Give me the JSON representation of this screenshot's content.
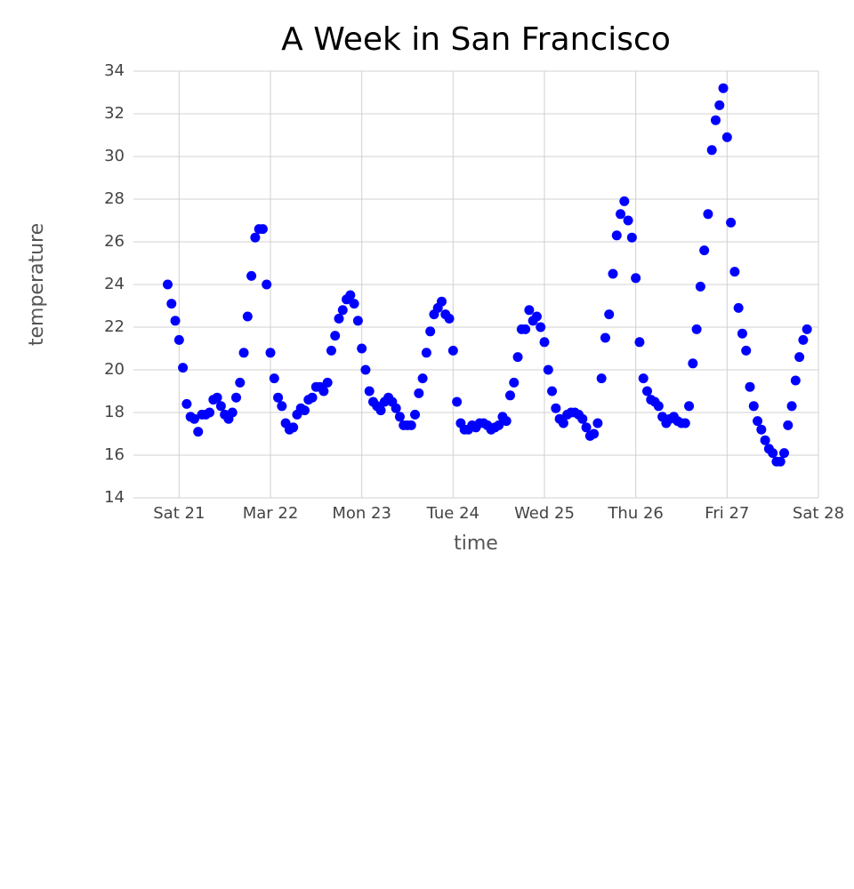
{
  "chart_data": {
    "type": "scatter",
    "title": "A Week in San Francisco",
    "x_label": "time",
    "y_label": "temperature",
    "color": "#0000ff",
    "grid": true,
    "xlim": [
      -12,
      168
    ],
    "xticks": [
      {
        "value": 0,
        "label": "Sat 21"
      },
      {
        "value": 24,
        "label": "Mar 22"
      },
      {
        "value": 48,
        "label": "Mon 23"
      },
      {
        "value": 72,
        "label": "Tue 24"
      },
      {
        "value": 96,
        "label": "Wed 25"
      },
      {
        "value": 120,
        "label": "Thu 26"
      },
      {
        "value": 144,
        "label": "Fri 27"
      },
      {
        "value": 168,
        "label": "Sat 28"
      }
    ],
    "ylim": [
      14,
      34
    ],
    "yticks": [
      14,
      16,
      18,
      20,
      22,
      24,
      26,
      28,
      30,
      32,
      34
    ],
    "x": [
      -3,
      -2,
      -1,
      0,
      1,
      2,
      3,
      4,
      5,
      6,
      7,
      8,
      9,
      10,
      11,
      12,
      13,
      14,
      15,
      16,
      17,
      18,
      19,
      20,
      21,
      22,
      23,
      24,
      25,
      26,
      27,
      28,
      29,
      30,
      31,
      32,
      33,
      34,
      35,
      36,
      37,
      38,
      39,
      40,
      41,
      42,
      43,
      44,
      45,
      46,
      47,
      48,
      49,
      50,
      51,
      52,
      53,
      54,
      55,
      56,
      57,
      58,
      59,
      60,
      61,
      62,
      63,
      64,
      65,
      66,
      67,
      68,
      69,
      70,
      71,
      72,
      73,
      74,
      75,
      76,
      77,
      78,
      79,
      80,
      81,
      82,
      83,
      84,
      85,
      86,
      87,
      88,
      89,
      90,
      91,
      92,
      93,
      94,
      95,
      96,
      97,
      98,
      99,
      100,
      101,
      102,
      103,
      104,
      105,
      106,
      107,
      108,
      109,
      110,
      111,
      112,
      113,
      114,
      115,
      116,
      117,
      118,
      119,
      120,
      121,
      122,
      123,
      124,
      125,
      126,
      127,
      128,
      129,
      130,
      131,
      132,
      133,
      134,
      135,
      136,
      137,
      138,
      139,
      140,
      141,
      142,
      143,
      144,
      145,
      146,
      147,
      148,
      149,
      150,
      151,
      152,
      153,
      154,
      155,
      156,
      157,
      158,
      159,
      160,
      161,
      162,
      163,
      164,
      165
    ],
    "values": [
      24.0,
      23.1,
      22.3,
      21.4,
      20.1,
      18.4,
      17.8,
      17.7,
      17.1,
      17.9,
      17.9,
      18.0,
      18.6,
      18.7,
      18.3,
      17.9,
      17.7,
      18.0,
      18.7,
      19.4,
      20.8,
      22.5,
      24.4,
      26.2,
      26.6,
      26.6,
      24.0,
      20.8,
      19.6,
      18.7,
      18.3,
      17.5,
      17.2,
      17.3,
      17.9,
      18.2,
      18.1,
      18.6,
      18.7,
      19.2,
      19.2,
      19.0,
      19.4,
      20.9,
      21.6,
      22.4,
      22.8,
      23.3,
      23.5,
      23.1,
      22.3,
      21.0,
      20.0,
      19.0,
      18.5,
      18.3,
      18.1,
      18.5,
      18.7,
      18.5,
      18.2,
      17.8,
      17.4,
      17.4,
      17.4,
      17.9,
      18.9,
      19.6,
      20.8,
      21.8,
      22.6,
      22.9,
      23.2,
      22.6,
      22.4,
      20.9,
      18.5,
      17.5,
      17.2,
      17.2,
      17.4,
      17.3,
      17.5,
      17.5,
      17.4,
      17.2,
      17.3,
      17.4,
      17.8,
      17.6,
      18.8,
      19.4,
      20.6,
      21.9,
      21.9,
      22.8,
      22.3,
      22.5,
      22.0,
      21.3,
      20.0,
      19.0,
      18.2,
      17.7,
      17.5,
      17.9,
      18.0,
      18.0,
      17.9,
      17.7,
      17.3,
      16.9,
      17.0,
      17.5,
      19.6,
      21.5,
      22.6,
      24.5,
      26.3,
      27.3,
      27.9,
      27.0,
      26.2,
      24.3,
      21.3,
      19.6,
      19.0,
      18.6,
      18.5,
      18.3,
      17.8,
      17.5,
      17.7,
      17.8,
      17.6,
      17.5,
      17.5,
      18.3,
      20.3,
      21.9,
      23.9,
      25.6,
      27.3,
      30.3,
      31.7,
      32.4,
      33.2,
      30.9,
      26.9,
      24.6,
      22.9,
      21.7,
      20.9,
      19.2,
      18.3,
      17.6,
      17.2,
      16.7,
      16.3,
      16.1,
      15.7,
      15.7,
      16.1,
      17.4,
      18.3,
      19.5,
      20.6,
      21.4,
      21.9
    ]
  }
}
